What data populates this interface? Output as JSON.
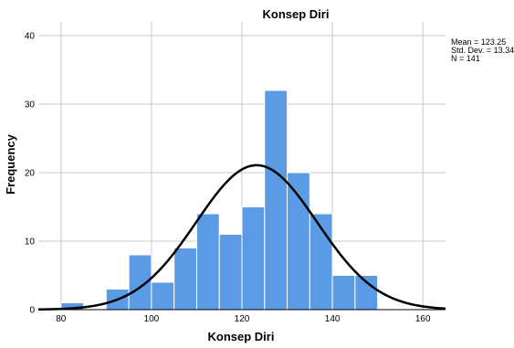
{
  "chart_data": {
    "type": "bar",
    "title": "Konsep Diri",
    "xlabel": "Konsep Diri",
    "ylabel": "Frequency",
    "xlim": [
      75,
      165
    ],
    "ylim": [
      0,
      42
    ],
    "xticks": [
      80,
      100,
      120,
      140,
      160
    ],
    "yticks": [
      0,
      10,
      20,
      30,
      40
    ],
    "grid": true,
    "bin_width": 5,
    "bins": [
      {
        "start": 80,
        "end": 85,
        "count": 1
      },
      {
        "start": 85,
        "end": 90,
        "count": 0
      },
      {
        "start": 90,
        "end": 95,
        "count": 3
      },
      {
        "start": 95,
        "end": 100,
        "count": 8
      },
      {
        "start": 100,
        "end": 105,
        "count": 4
      },
      {
        "start": 105,
        "end": 110,
        "count": 9
      },
      {
        "start": 110,
        "end": 115,
        "count": 14
      },
      {
        "start": 115,
        "end": 120,
        "count": 11
      },
      {
        "start": 120,
        "end": 125,
        "count": 15
      },
      {
        "start": 125,
        "end": 130,
        "count": 32
      },
      {
        "start": 130,
        "end": 135,
        "count": 20
      },
      {
        "start": 135,
        "end": 140,
        "count": 14
      },
      {
        "start": 140,
        "end": 145,
        "count": 5
      },
      {
        "start": 145,
        "end": 150,
        "count": 5
      }
    ],
    "normal_curve": {
      "mean": 123.25,
      "sd": 13.341,
      "n": 141
    },
    "stats_text": [
      "Mean = 123.25",
      "Std. Dev. = 13.341",
      "N = 141"
    ],
    "colors": {
      "bar_fill": "#5b9be6",
      "bar_stroke": "#ffffff",
      "curve": "#000000",
      "grid": "#c8c8c8",
      "axis": "#000000"
    }
  }
}
